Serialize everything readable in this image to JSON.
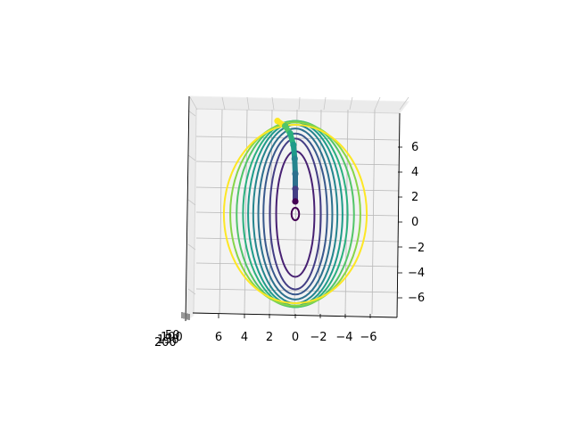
{
  "chart_data": {
    "type": "contour-3d",
    "title": "",
    "xlabel": "",
    "ylabel": "",
    "zlabel": "",
    "grid": true,
    "x_ticks": [
      6,
      4,
      2,
      0,
      -2,
      -4,
      -6
    ],
    "x_tick_labels": [
      "6",
      "4",
      "2",
      "0",
      "−2",
      "−4",
      "−6"
    ],
    "y_ticks": [
      6,
      4,
      2,
      0,
      -2,
      -4,
      -6
    ],
    "y_tick_labels": [
      "6",
      "4",
      "2",
      "0",
      "−2",
      "−4",
      "−6"
    ],
    "z_tick_labels": [
      "200",
      "150",
      "100",
      "50"
    ],
    "xlim": [
      -7.5,
      7.5
    ],
    "ylim": [
      -7.5,
      7.5
    ],
    "contours": [
      {
        "level": 1,
        "a": 0.3,
        "b": 0.5,
        "color": "#440154"
      },
      {
        "level": 2,
        "a": 1.5,
        "b": 5.0,
        "color": "#482173"
      },
      {
        "level": 3,
        "a": 2.0,
        "b": 6.0,
        "color": "#433e85"
      },
      {
        "level": 4,
        "a": 2.5,
        "b": 6.4,
        "color": "#38588c"
      },
      {
        "level": 5,
        "a": 2.9,
        "b": 6.8,
        "color": "#2d708e"
      },
      {
        "level": 6,
        "a": 3.3,
        "b": 7.1,
        "color": "#25858e"
      },
      {
        "level": 7,
        "a": 3.7,
        "b": 7.3,
        "color": "#1e9b8a"
      },
      {
        "level": 8,
        "a": 4.1,
        "b": 7.4,
        "color": "#2ab07f"
      },
      {
        "level": 9,
        "a": 4.6,
        "b": 7.4,
        "color": "#52c569"
      },
      {
        "level": 10,
        "a": 5.1,
        "b": 7.3,
        "color": "#86d549"
      },
      {
        "level": 11,
        "a": 5.6,
        "b": 7.1,
        "color": "#fde725"
      }
    ],
    "trajectory": [
      {
        "x": 1.4,
        "y": 7.4
      },
      {
        "x": 0.8,
        "y": 7.0
      },
      {
        "x": 0.4,
        "y": 6.4
      },
      {
        "x": 0.15,
        "y": 5.5
      },
      {
        "x": 0.05,
        "y": 4.4
      },
      {
        "x": 0.0,
        "y": 3.2
      },
      {
        "x": 0.0,
        "y": 2.0
      },
      {
        "x": 0.0,
        "y": 1.0
      }
    ],
    "trajectory_colors": [
      "#fde725",
      "#52c569",
      "#2ab07f",
      "#1e9b8a",
      "#25858e",
      "#2d708e",
      "#433e85",
      "#440154"
    ]
  }
}
